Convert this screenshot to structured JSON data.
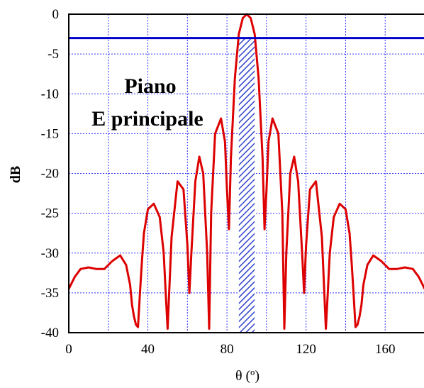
{
  "chart_data": {
    "type": "line",
    "title": "",
    "xlabel": "θ (º)",
    "ylabel": "dB",
    "xlim": [
      0,
      180
    ],
    "ylim": [
      -40,
      0
    ],
    "x_ticks": [
      0,
      40,
      80,
      120,
      160
    ],
    "x_tick_labels": [
      "0",
      "40",
      "80",
      "120",
      "160"
    ],
    "y_ticks": [
      0,
      -5,
      -10,
      -15,
      -20,
      -25,
      -30,
      -35,
      -40
    ],
    "y_tick_labels": [
      "0",
      "-5",
      "-10",
      "-15",
      "-20",
      "-25",
      "-30",
      "-35",
      "-40"
    ],
    "x_grid_ticks": [
      20,
      40,
      60,
      80,
      100,
      120,
      140,
      160
    ],
    "y_grid_ticks": [
      -5,
      -10,
      -15,
      -20,
      -25,
      -30,
      -35
    ],
    "grid": true,
    "annotation_lines": [
      "Piano",
      "E principale"
    ],
    "reference_line": {
      "y": -3,
      "color": "#0000cc"
    },
    "beamwidth_band": {
      "x_start": 86,
      "x_end": 94,
      "y_top": -3,
      "y_bottom": -40,
      "fill": "#3344cc"
    },
    "series": [
      {
        "color": "#dd0000",
        "x": [
          0,
          3,
          6,
          10,
          14,
          18,
          22,
          26,
          29,
          31,
          32,
          33,
          34,
          35,
          36,
          37,
          38,
          40,
          43,
          46,
          48,
          49,
          50,
          52,
          55,
          58,
          60,
          61,
          62,
          64,
          66,
          68,
          70,
          71,
          72,
          74,
          77,
          79,
          80,
          81,
          82,
          84,
          86,
          88,
          90,
          92,
          94,
          96,
          98,
          99,
          100,
          101,
          103,
          106,
          108,
          109,
          110,
          112,
          114,
          116,
          118,
          119,
          120,
          122,
          125,
          128,
          130,
          131,
          132,
          134,
          137,
          140,
          142,
          143,
          144,
          145,
          146,
          147,
          148,
          149,
          151,
          154,
          158,
          162,
          166,
          170,
          174,
          177,
          180
        ],
        "y": [
          -34.5,
          -33,
          -32,
          -31.8,
          -32,
          -32,
          -31,
          -30.3,
          -31.5,
          -34,
          -36.5,
          -38,
          -39,
          -39.3,
          -35,
          -31,
          -27.5,
          -24.5,
          -23.8,
          -25.5,
          -30,
          -35,
          -39.5,
          -28,
          -21,
          -22,
          -29,
          -35,
          -30,
          -21,
          -17.9,
          -20,
          -30,
          -39.5,
          -25,
          -15,
          -13.1,
          -16,
          -22,
          -27,
          -18,
          -8,
          -2.5,
          -0.5,
          0,
          -0.5,
          -2.5,
          -8,
          -18,
          -27,
          -22,
          -16,
          -13.1,
          -15,
          -25,
          -39.5,
          -30,
          -20,
          -17.9,
          -21,
          -30,
          -35,
          -29,
          -22,
          -21,
          -28,
          -39.5,
          -35,
          -30,
          -25.5,
          -23.8,
          -24.5,
          -27.5,
          -31,
          -35,
          -39.3,
          -39,
          -38,
          -36.5,
          -34,
          -31.5,
          -30.3,
          -31,
          -32,
          -32,
          -31.8,
          -32,
          -33,
          -34.5
        ]
      }
    ]
  }
}
